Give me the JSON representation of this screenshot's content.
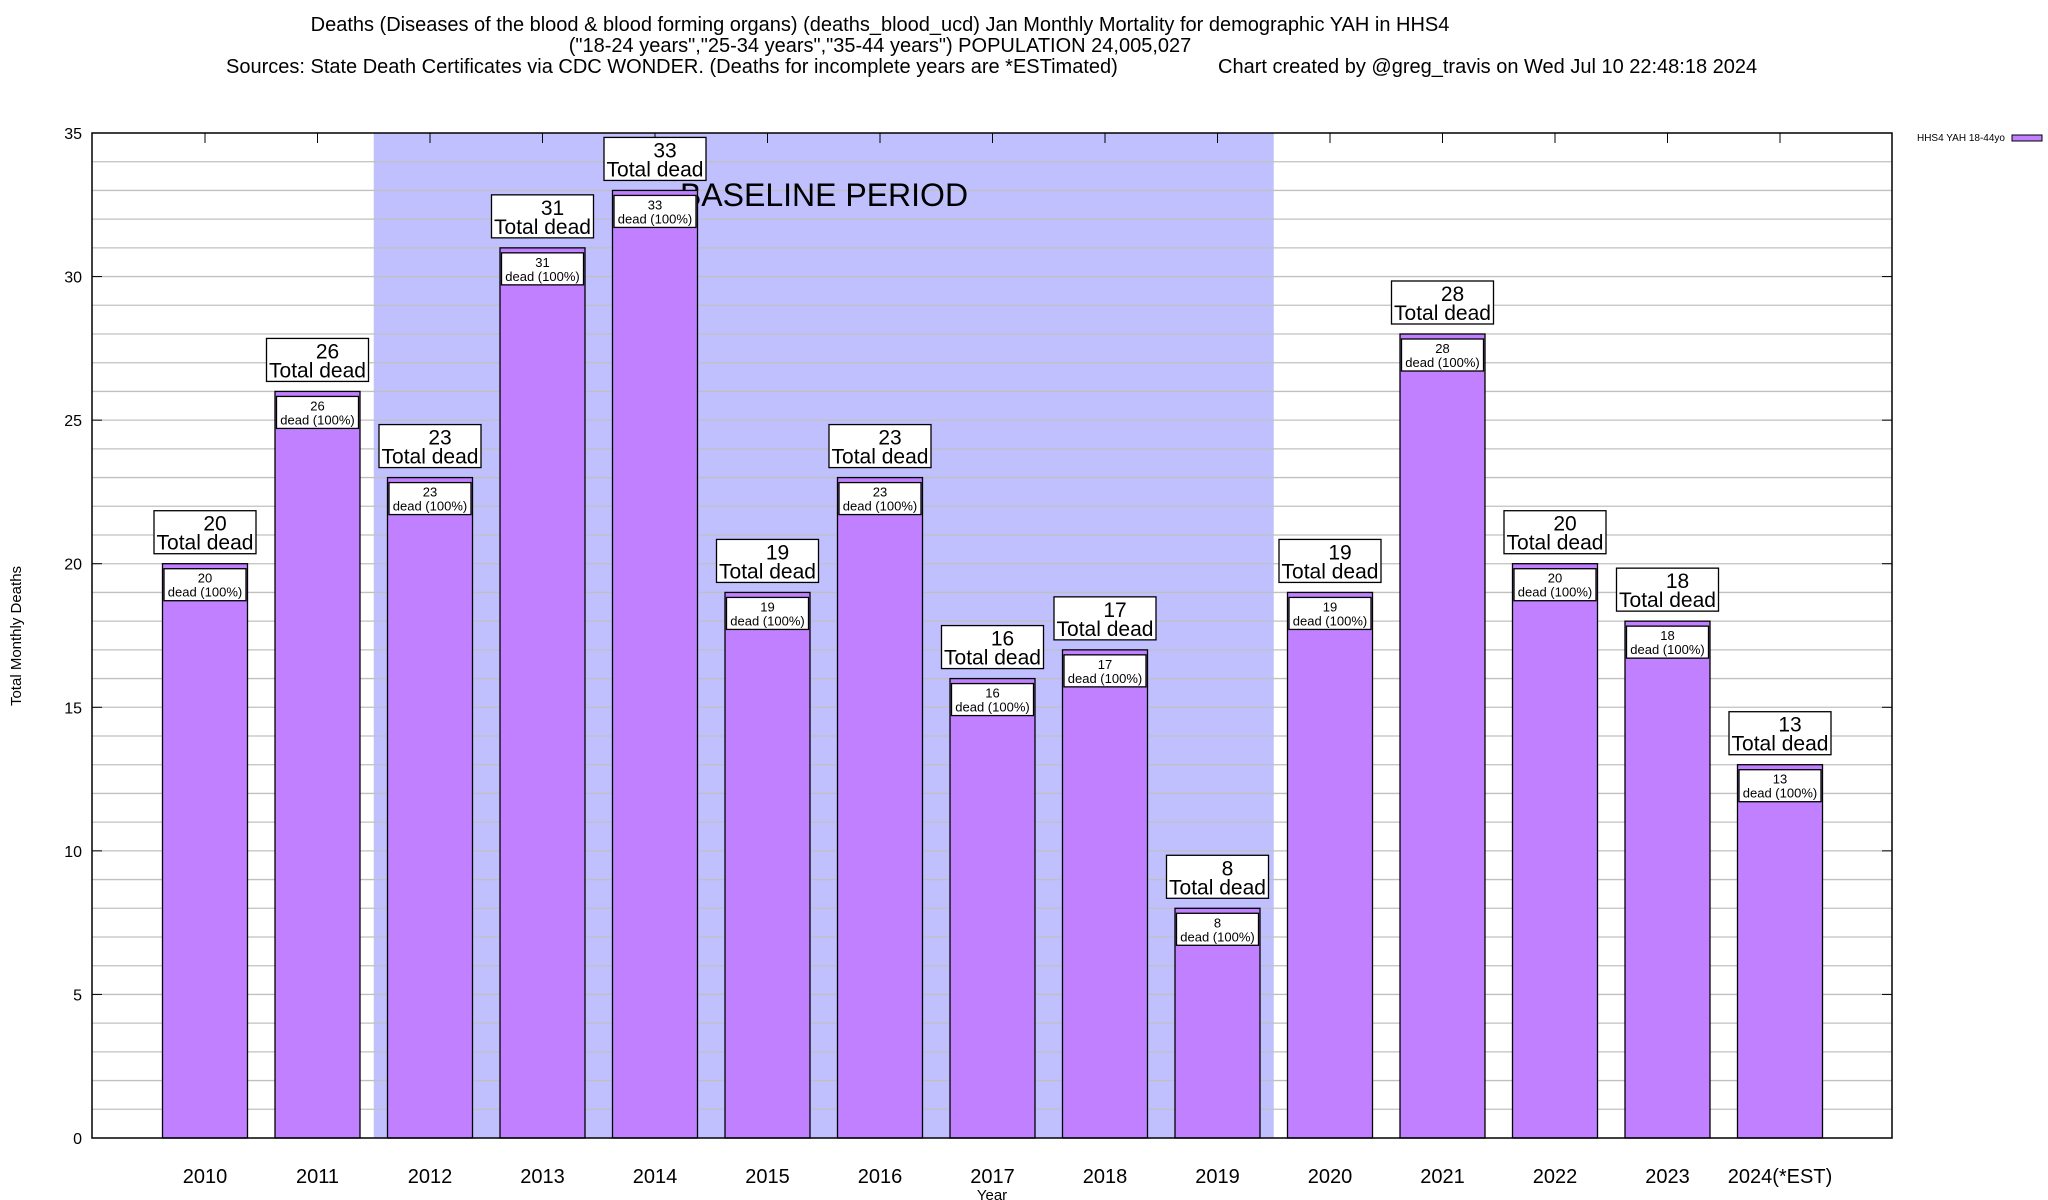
{
  "chart_data": {
    "type": "bar",
    "title": "Deaths (Diseases of the blood & blood forming organs) (deaths_blood_ucd) Jan Monthly Mortality for demographic YAH in HHS4",
    "subtitle": "(\"18-24 years\",\"25-34 years\",\"35-44 years\") POPULATION 24,005,027",
    "sources": "Sources: State Death Certificates via CDC WONDER. (Deaths for incomplete years are *ESTimated)",
    "credit": "Chart created by @greg_travis on Wed Jul 10 22:48:18 2024",
    "xlabel": "Year",
    "ylabel": "Total Monthly Deaths",
    "ylim": [
      0,
      35
    ],
    "yticks": [
      0,
      5,
      10,
      15,
      20,
      25,
      30,
      35
    ],
    "grid": true,
    "legend_position": "top-right",
    "categories": [
      "2010",
      "2011",
      "2012",
      "2013",
      "2014",
      "2015",
      "2016",
      "2017",
      "2018",
      "2019",
      "2020",
      "2021",
      "2022",
      "2023",
      "2024(*EST)"
    ],
    "series": [
      {
        "name": "HHS4 YAH 18-44yo",
        "color": "#c080ff",
        "values": [
          20,
          26,
          23,
          31,
          33,
          19,
          23,
          16,
          17,
          8,
          19,
          28,
          20,
          18,
          13
        ]
      }
    ],
    "total_label": "Total dead",
    "share_label": "dead (100%)",
    "baseline": {
      "label": "BASELINE PERIOD",
      "from": "2012",
      "to": "2019",
      "color": "#c0c0ff"
    }
  }
}
